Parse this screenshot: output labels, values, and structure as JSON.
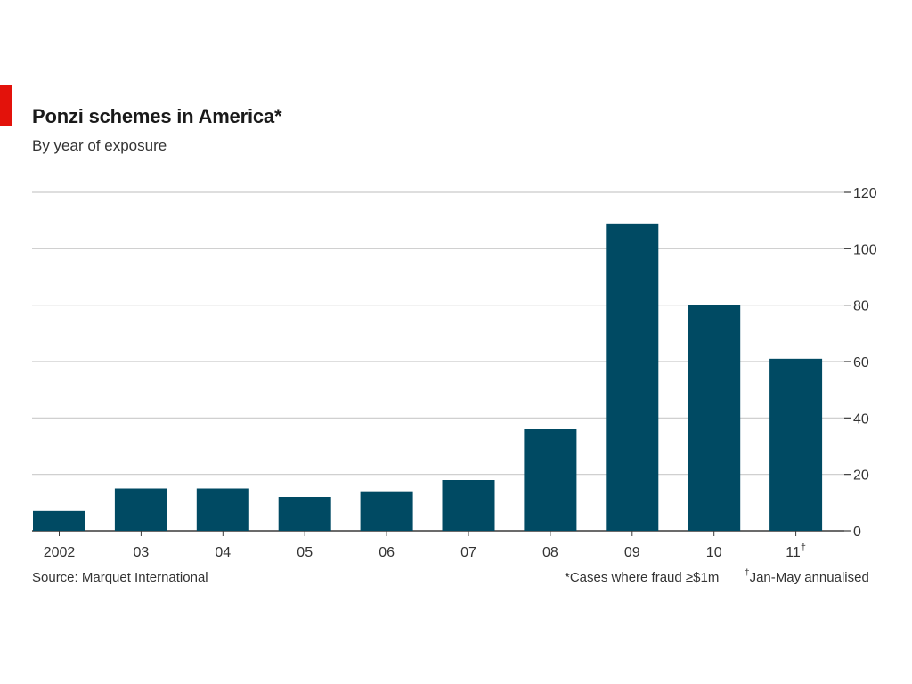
{
  "chart_data": {
    "type": "bar",
    "title": "Ponzi schemes in America*",
    "subtitle": "By year of exposure",
    "categories": [
      "2002",
      "03",
      "04",
      "05",
      "06",
      "07",
      "08",
      "09",
      "10",
      "11†"
    ],
    "values": [
      7,
      15,
      15,
      12,
      14,
      18,
      36,
      109,
      80,
      61
    ],
    "ylim": [
      0,
      120
    ],
    "yticks": [
      0,
      20,
      40,
      60,
      80,
      100,
      120
    ],
    "y_axis_side": "right",
    "grid": true,
    "xlabel": "",
    "ylabel": "",
    "colors": {
      "bar": "#004a63",
      "grid": "#c9c9c9",
      "accent": "#e3120b"
    }
  },
  "footer": {
    "source": "Source: Marquet International",
    "note_fraud": "*Cases where fraud ≥$1m",
    "note_dagger_symbol": "†",
    "note_dagger_text": "Jan-May annualised"
  }
}
